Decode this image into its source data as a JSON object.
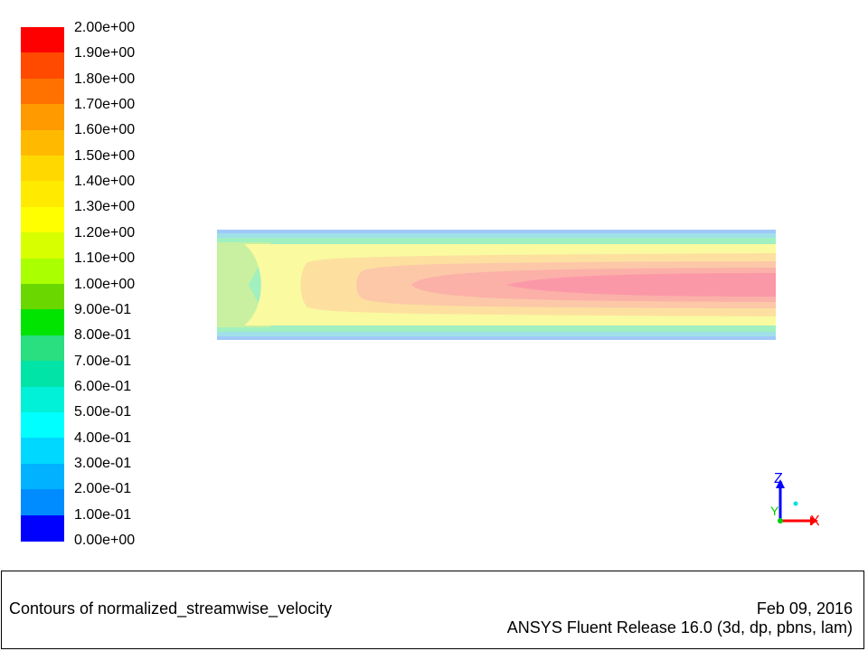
{
  "legend": {
    "labels": [
      "2.00e+00",
      "1.90e+00",
      "1.80e+00",
      "1.70e+00",
      "1.60e+00",
      "1.50e+00",
      "1.40e+00",
      "1.30e+00",
      "1.20e+00",
      "1.10e+00",
      "1.00e+00",
      "9.00e-01",
      "8.00e-01",
      "7.00e-01",
      "6.00e-01",
      "5.00e-01",
      "4.00e-01",
      "3.00e-01",
      "2.00e-01",
      "1.00e-01",
      "0.00e+00"
    ],
    "colors": [
      "#ff0000",
      "#ff4a00",
      "#ff7200",
      "#ff9a00",
      "#ffba00",
      "#ffd800",
      "#ffea00",
      "#ffff00",
      "#d8ff00",
      "#aaff00",
      "#6ad800",
      "#00e400",
      "#2adf80",
      "#00e4a8",
      "#00f0d8",
      "#00ffff",
      "#00d8ff",
      "#00b2ff",
      "#008cff",
      "#0060ff",
      "#0000ff"
    ]
  },
  "contour": {
    "inlet_color": "#c8f0a0",
    "core_colors": [
      "#fafaa0",
      "#fde0a0",
      "#fcc8a8",
      "#fbb0a8",
      "#fb98a8"
    ],
    "edge_colors": [
      "#a0f0c0",
      "#a0e0e8",
      "#a0c8f8"
    ]
  },
  "axes_triad": {
    "z_label": "Z",
    "y_label": "Y",
    "x_label": "X",
    "z_color": "#0000ff",
    "x_color": "#ff0000",
    "y_color": "#00cc00",
    "dot_color": "#00e0e0"
  },
  "footer": {
    "caption": "Contours of normalized_streamwise_velocity",
    "date": "Feb 09, 2016",
    "release": "ANSYS Fluent Release 16.0 (3d, dp, pbns, lam)"
  }
}
